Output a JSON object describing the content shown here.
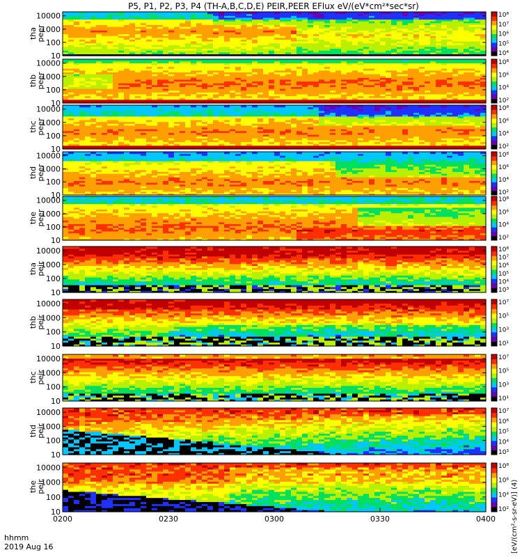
{
  "title": "P5, P1, P2, P3, P4 (TH-A,B,C,D,E) PEIR,PEER EFlux eV/(eV*cm²*sec*sr)",
  "corner_labels": [
    "hhmm",
    "2019 Aug 16"
  ],
  "colorbar_units": "[eV/(cm²-s-sr-eV)] (4)",
  "colors": {
    "palette": [
      "#000000",
      "#6a00b0",
      "#2030ff",
      "#00c8ff",
      "#00e060",
      "#b8f000",
      "#ffff00",
      "#ffa000",
      "#ff3000",
      "#c00000"
    ]
  },
  "chart_data": [
    {
      "type": "heatmap",
      "probe_label": "tha",
      "species_label": "peer",
      "ylog": true,
      "yticks": [
        "10",
        "100",
        "1000",
        "10000"
      ],
      "cbar_ticks": [
        "10⁸",
        "10⁷",
        "10⁶",
        "10⁵",
        "10⁴"
      ],
      "pattern": "tha_peer"
    },
    {
      "type": "heatmap",
      "probe_label": "thb",
      "species_label": "peer",
      "ylog": true,
      "yticks": [
        "10",
        "100",
        "1000",
        "10000"
      ],
      "cbar_ticks": [
        "10⁸",
        "10⁶",
        "10⁴",
        "10²"
      ],
      "pattern": "thb_peer"
    },
    {
      "type": "heatmap",
      "probe_label": "thc",
      "species_label": "peer",
      "ylog": true,
      "yticks": [
        "10",
        "100",
        "1000",
        "10000"
      ],
      "cbar_ticks": [
        "10⁸",
        "10⁶",
        "10⁴",
        "10²"
      ],
      "pattern": "thc_peer"
    },
    {
      "type": "heatmap",
      "probe_label": "thd",
      "species_label": "peer",
      "ylog": true,
      "yticks": [
        "10",
        "100",
        "1000",
        "10000"
      ],
      "cbar_ticks": [
        "10⁸",
        "10⁶",
        "10⁴",
        "10²"
      ],
      "pattern": "thd_peer"
    },
    {
      "type": "heatmap",
      "probe_label": "the",
      "species_label": "peer",
      "ylog": true,
      "yticks": [
        "10",
        "100",
        "1000",
        "10000"
      ],
      "cbar_ticks": [
        "10⁸",
        "10⁶",
        "10⁴",
        "10²"
      ],
      "pattern": "the_peer"
    },
    {
      "type": "heatmap",
      "probe_label": "tha",
      "species_label": "peir",
      "ylog": true,
      "yticks": [
        "10",
        "100",
        "1000",
        "10000"
      ],
      "cbar_ticks": [
        "10⁸",
        "10⁷",
        "10⁶",
        "10⁵",
        "10⁴",
        "10³"
      ],
      "pattern": "tha_peir"
    },
    {
      "type": "heatmap",
      "probe_label": "thb",
      "species_label": "peir",
      "ylog": true,
      "yticks": [
        "10",
        "100",
        "1000",
        "10000"
      ],
      "cbar_ticks": [
        "10⁷",
        "10⁵",
        "10³",
        "10¹"
      ],
      "pattern": "thb_peir"
    },
    {
      "type": "heatmap",
      "probe_label": "thc",
      "species_label": "peir",
      "ylog": true,
      "yticks": [
        "10",
        "100",
        "1000",
        "10000"
      ],
      "cbar_ticks": [
        "10⁷",
        "10⁵",
        "10³",
        "10¹"
      ],
      "pattern": "thc_peir"
    },
    {
      "type": "heatmap",
      "probe_label": "thd",
      "species_label": "peir",
      "ylog": true,
      "yticks": [
        "10",
        "100",
        "1000",
        "10000"
      ],
      "cbar_ticks": [
        "10⁷",
        "10⁶",
        "10⁵",
        "10⁴",
        "10³"
      ],
      "pattern": "thd_peir"
    },
    {
      "type": "heatmap",
      "probe_label": "the",
      "species_label": "peir",
      "ylog": true,
      "yticks": [
        "10",
        "100",
        "1000",
        "10000"
      ],
      "cbar_ticks": [
        "10⁸",
        "10⁶",
        "10⁴",
        "10²"
      ],
      "pattern": "the_peir"
    }
  ],
  "x_axis": {
    "ticks": [
      "0200",
      "0230",
      "0300",
      "0330",
      "0400"
    ]
  }
}
